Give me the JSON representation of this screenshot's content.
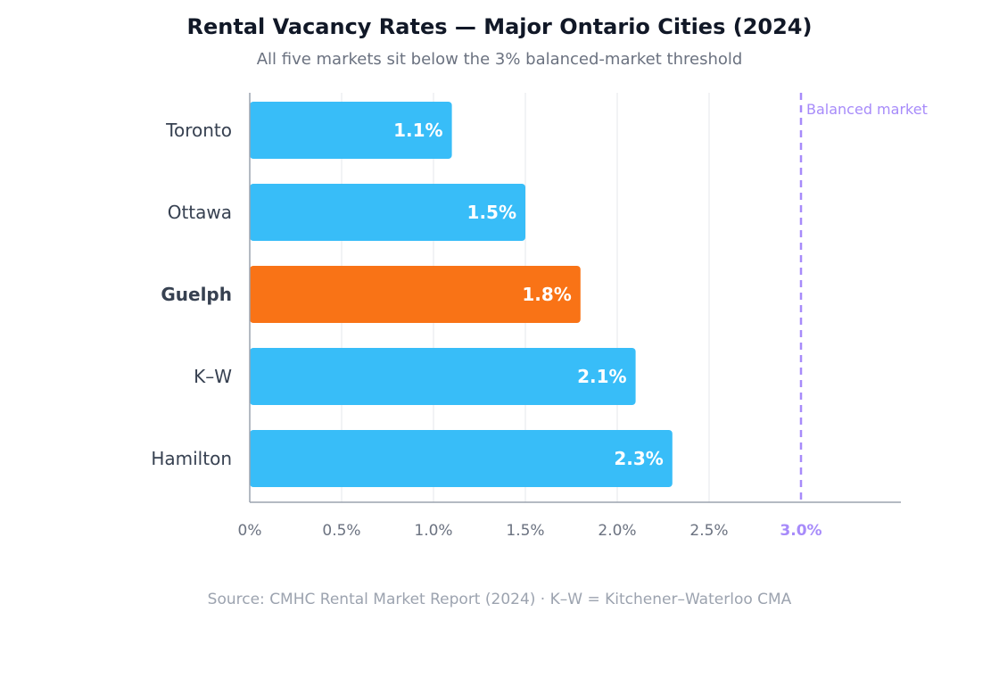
{
  "title": "Rental Vacancy Rates — Major Ontario Cities (2024)",
  "subtitle": "All five markets sit below the 3% balanced-market threshold",
  "source": "Source: CMHC Rental Market Report (2024) · K–W = Kitchener–Waterloo CMA",
  "colors": {
    "bar": "#38bdf8",
    "highlight": "#f97316",
    "threshold": "#a78bfa",
    "grid": "#e5e7eb",
    "axis": "#9ca3af",
    "tick_text": "#6b7280",
    "category_text": "#374151",
    "bar_label": "#ffffff"
  },
  "chart_data": {
    "type": "bar",
    "orientation": "horizontal",
    "categories": [
      "Toronto",
      "Ottawa",
      "Guelph",
      "K–W",
      "Hamilton"
    ],
    "values": [
      1.1,
      1.5,
      1.8,
      2.1,
      2.3
    ],
    "value_labels": [
      "1.1%",
      "1.5%",
      "1.8%",
      "2.1%",
      "2.3%"
    ],
    "highlight_category": "Guelph",
    "x_ticks": [
      0,
      0.5,
      1.0,
      1.5,
      2.0,
      2.5,
      3.0
    ],
    "x_tick_labels": [
      "0%",
      "0.5%",
      "1.0%",
      "1.5%",
      "2.0%",
      "2.5%",
      "3.0%"
    ],
    "xlim": [
      0,
      3.55
    ],
    "grid": true,
    "threshold": {
      "value": 3.0,
      "label": "Balanced market"
    }
  }
}
